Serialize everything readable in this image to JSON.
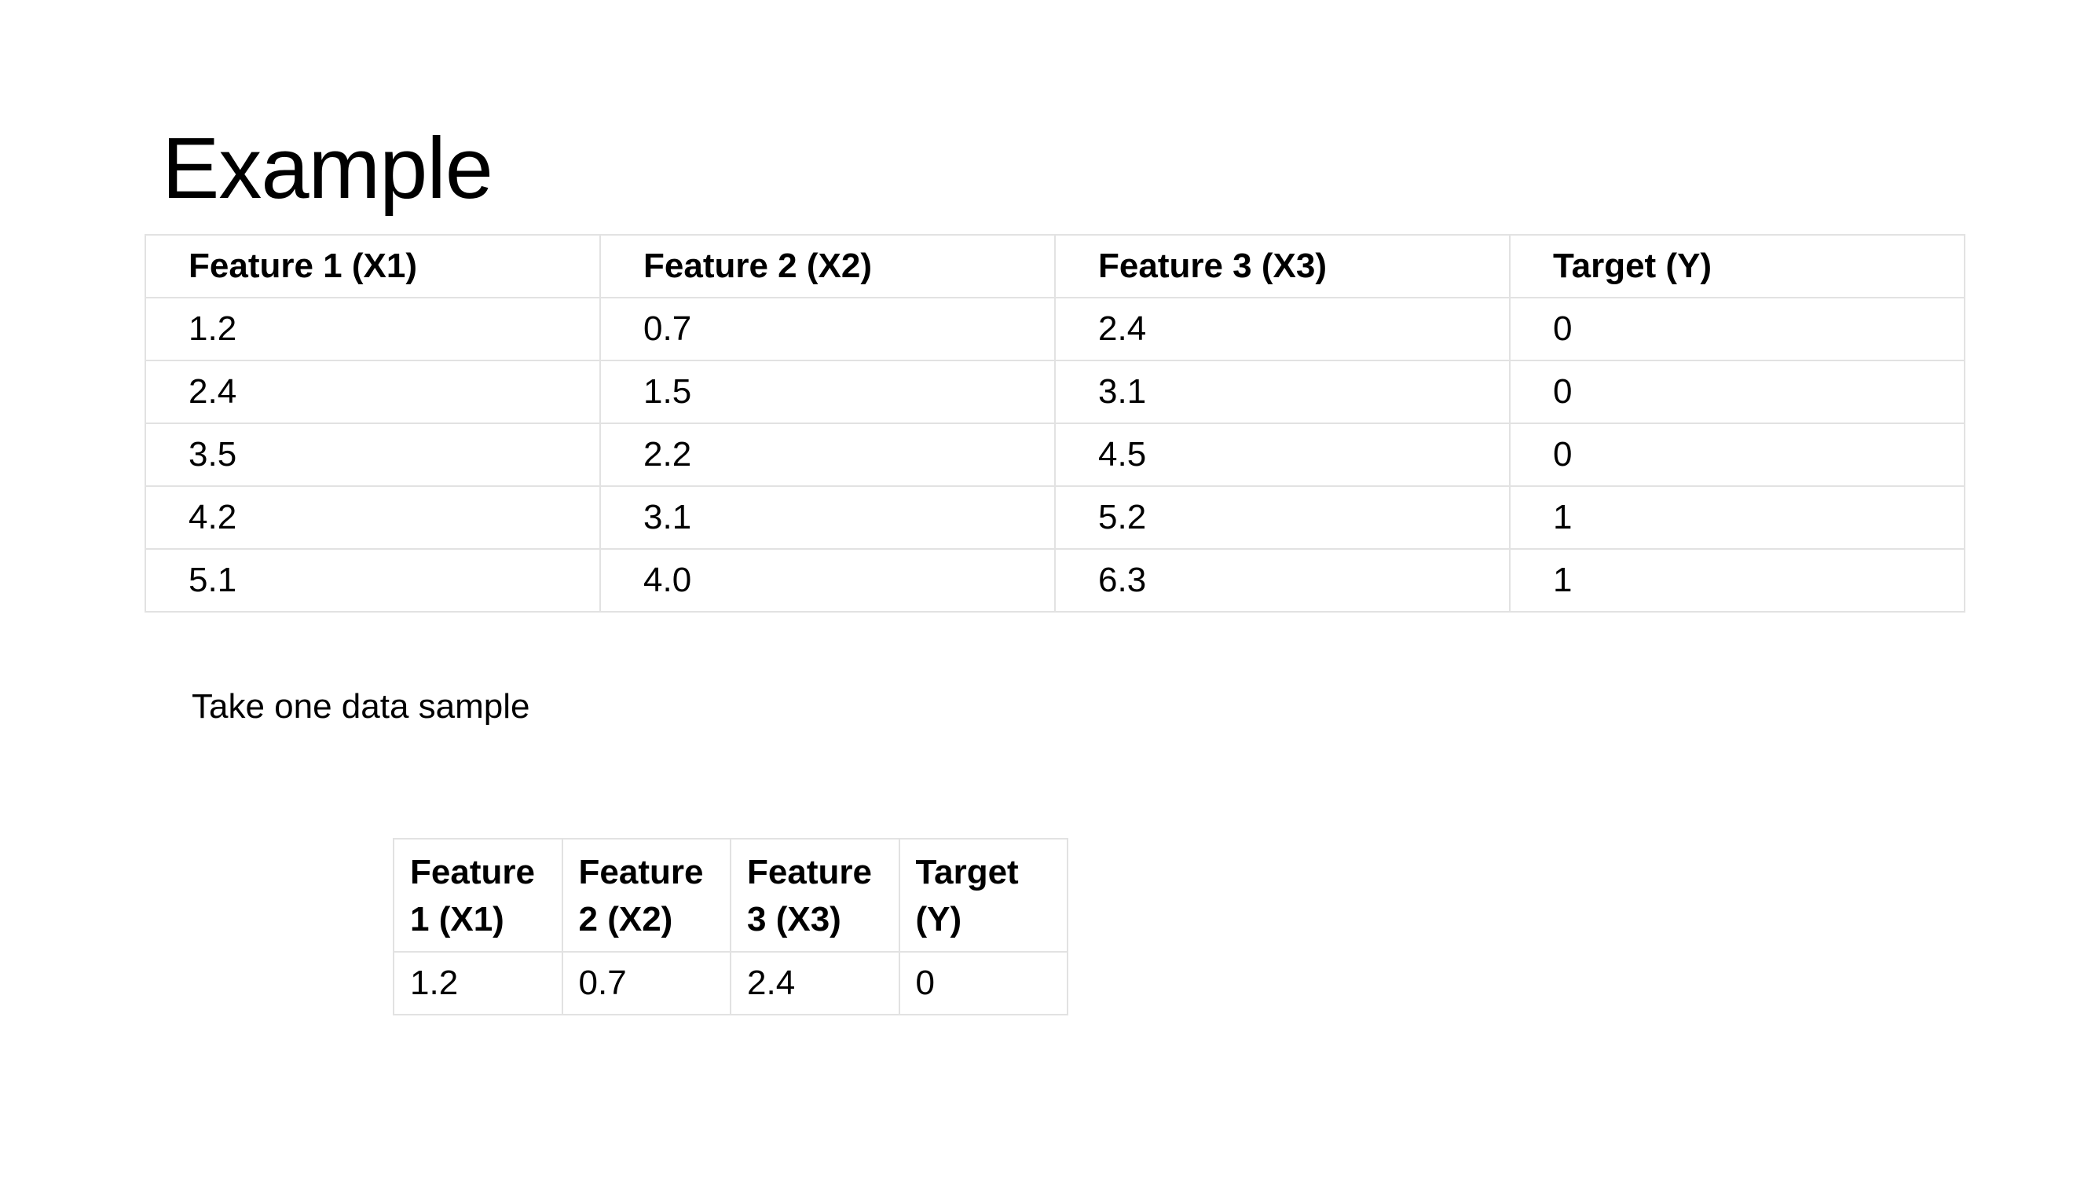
{
  "slide": {
    "title": "Example",
    "caption": "Take one data sample"
  },
  "main_table": {
    "headers": [
      "Feature 1 (X1)",
      "Feature 2 (X2)",
      "Feature 3 (X3)",
      "Target (Y)"
    ],
    "rows": [
      [
        "1.2",
        "0.7",
        "2.4",
        "0"
      ],
      [
        "2.4",
        "1.5",
        "3.1",
        "0"
      ],
      [
        "3.5",
        "2.2",
        "4.5",
        "0"
      ],
      [
        "4.2",
        "3.1",
        "5.2",
        "1"
      ],
      [
        "5.1",
        "4.0",
        "6.3",
        "1"
      ]
    ]
  },
  "sample_table": {
    "headers": [
      "Feature 1 (X1)",
      "Feature 2 (X2)",
      "Feature 3 (X3)",
      "Target (Y)"
    ],
    "rows": [
      [
        "1.2",
        "0.7",
        "2.4",
        "0"
      ]
    ]
  },
  "colors": {
    "background": "#ffffff",
    "text": "#000000",
    "table_border": "#e2e2e2"
  }
}
